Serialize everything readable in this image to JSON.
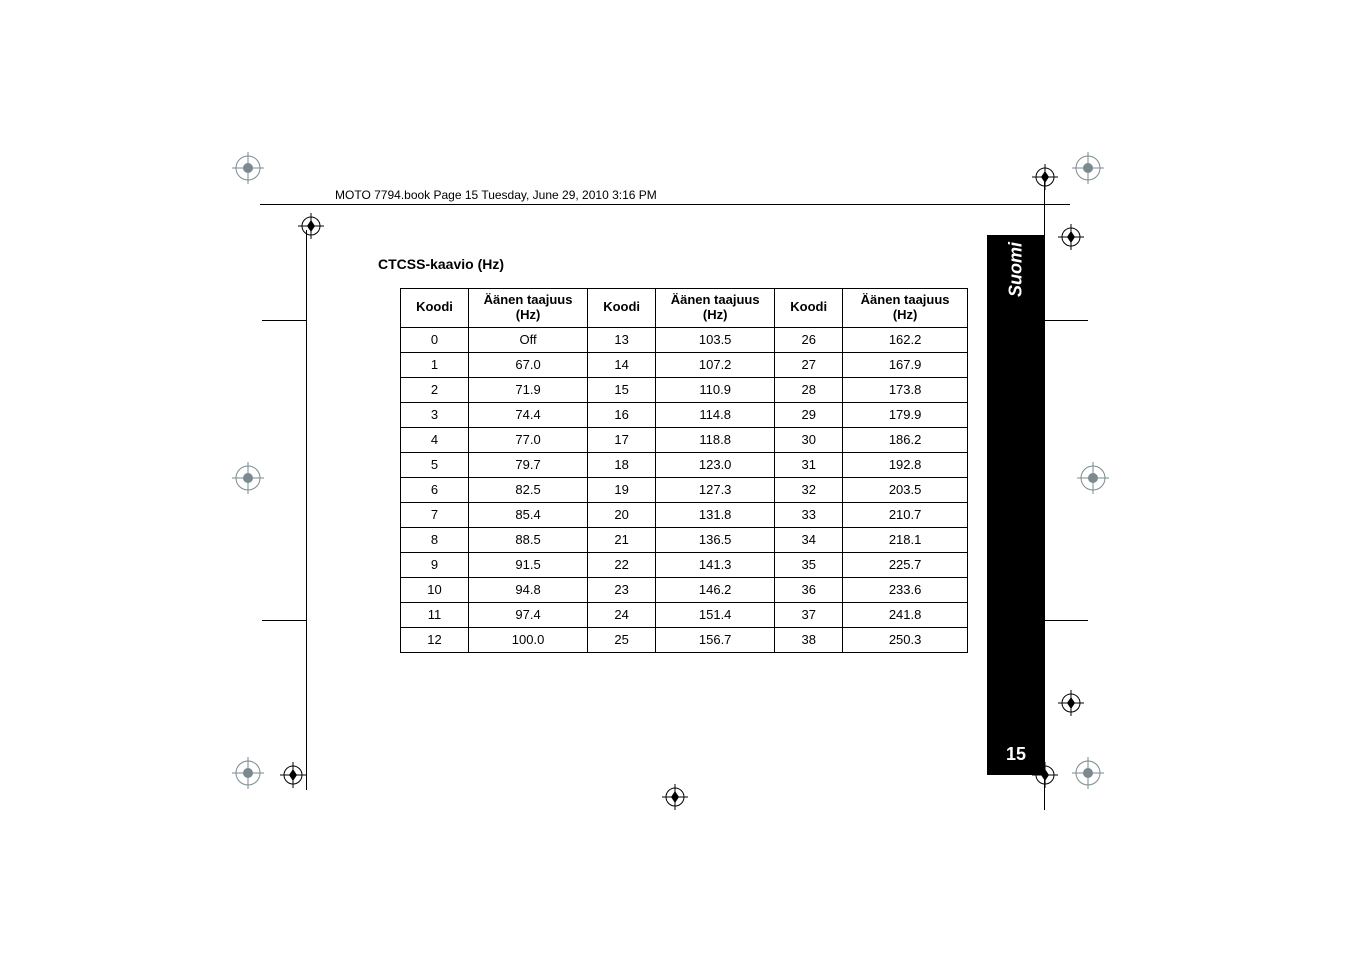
{
  "header_book_line": "MOTO 7794.book  Page 15  Tuesday, June 29, 2010  3:16 PM",
  "section_title": "CTCSS-kaavio (Hz)",
  "sidebar_label": "Suomi",
  "page_number": "15",
  "table": {
    "columns": [
      {
        "header_l1": "Koodi",
        "header_l2": "",
        "width": "12%"
      },
      {
        "header_l1": "Äänen taajuus",
        "header_l2": "(Hz)",
        "width": "21%"
      },
      {
        "header_l1": "Koodi",
        "header_l2": "",
        "width": "12%"
      },
      {
        "header_l1": "Äänen taajuus",
        "header_l2": "(Hz)",
        "width": "21%"
      },
      {
        "header_l1": "Koodi",
        "header_l2": "",
        "width": "12%"
      },
      {
        "header_l1": "Äänen taajuus",
        "header_l2": "(Hz)",
        "width": "22%"
      }
    ],
    "rows": [
      [
        "0",
        "Off",
        "13",
        "103.5",
        "26",
        "162.2"
      ],
      [
        "1",
        "67.0",
        "14",
        "107.2",
        "27",
        "167.9"
      ],
      [
        "2",
        "71.9",
        "15",
        "110.9",
        "28",
        "173.8"
      ],
      [
        "3",
        "74.4",
        "16",
        "114.8",
        "29",
        "179.9"
      ],
      [
        "4",
        "77.0",
        "17",
        "118.8",
        "30",
        "186.2"
      ],
      [
        "5",
        "79.7",
        "18",
        "123.0",
        "31",
        "192.8"
      ],
      [
        "6",
        "82.5",
        "19",
        "127.3",
        "32",
        "203.5"
      ],
      [
        "7",
        "85.4",
        "20",
        "131.8",
        "33",
        "210.7"
      ],
      [
        "8",
        "88.5",
        "21",
        "136.5",
        "34",
        "218.1"
      ],
      [
        "9",
        "91.5",
        "22",
        "141.3",
        "35",
        "225.7"
      ],
      [
        "10",
        "94.8",
        "23",
        "146.2",
        "36",
        "233.6"
      ],
      [
        "11",
        "97.4",
        "24",
        "151.4",
        "37",
        "241.8"
      ],
      [
        "12",
        "100.0",
        "25",
        "156.7",
        "38",
        "250.3"
      ]
    ]
  },
  "marks": {
    "registration_color": "#7a8a8f",
    "crosshair_color": "#000000"
  }
}
